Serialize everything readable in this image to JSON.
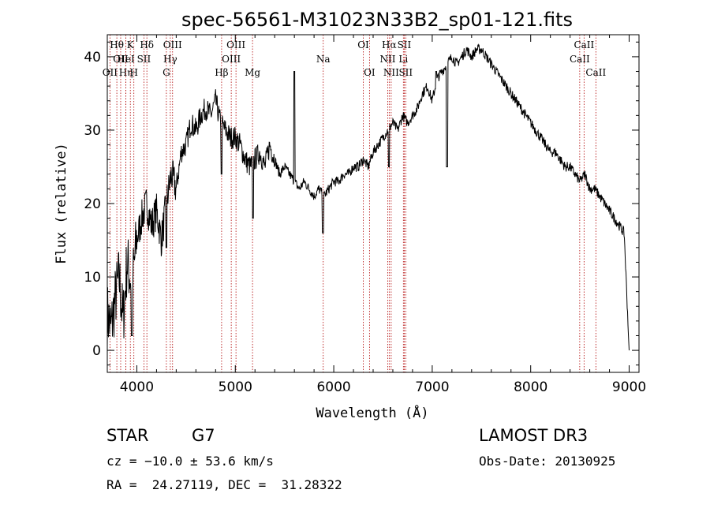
{
  "chart_data": {
    "type": "line",
    "title": "spec-56561-M31023N33B2_sp01-121.fits",
    "xlabel": "Wavelength (Å)",
    "ylabel": "Flux (relative)",
    "xlim": [
      3700,
      9100
    ],
    "ylim": [
      -3,
      43
    ],
    "xticks": [
      4000,
      5000,
      6000,
      7000,
      8000,
      9000
    ],
    "yticks": [
      0,
      10,
      20,
      30,
      40
    ],
    "grid": false,
    "series": [
      {
        "x": [
          3700,
          3740,
          3780,
          3820,
          3860,
          3900,
          3950,
          4000,
          4050,
          4100,
          4150,
          4200,
          4250,
          4300,
          4350,
          4400,
          4450,
          4500,
          4550,
          4600,
          4650,
          4700,
          4750,
          4800,
          4850,
          4900,
          4950,
          5000,
          5050,
          5100,
          5150,
          5200,
          5250,
          5300,
          5350,
          5400,
          5450,
          5500,
          5550,
          5600,
          5650,
          5700,
          5750,
          5800,
          5850,
          5900,
          5950,
          6000,
          6050,
          6100,
          6150,
          6200,
          6250,
          6300,
          6350,
          6400,
          6450,
          6500,
          6550,
          6600,
          6650,
          6700,
          6750,
          6800,
          6850,
          6900,
          6950,
          7000,
          7050,
          7100,
          7150,
          7200,
          7250,
          7300,
          7350,
          7400,
          7450,
          7500,
          7550,
          7600,
          7650,
          7700,
          7750,
          7800,
          7850,
          7900,
          7950,
          8000,
          8050,
          8100,
          8150,
          8200,
          8250,
          8300,
          8350,
          8400,
          8450,
          8500,
          8550,
          8600,
          8650,
          8700,
          8750,
          8800,
          8850,
          8900,
          8950,
          9000
        ],
        "values": [
          5,
          3,
          7,
          10,
          4,
          12,
          9,
          15,
          18,
          20,
          17,
          19,
          15,
          20,
          24,
          22,
          27,
          28,
          31,
          30,
          32,
          33,
          32,
          34,
          31,
          30,
          29,
          29,
          28,
          26,
          25,
          26,
          27,
          25,
          28,
          26,
          24,
          25,
          24,
          23,
          22,
          23,
          22,
          21,
          22,
          21,
          22,
          23,
          23,
          24,
          24,
          25,
          25,
          26,
          25,
          27,
          28,
          29,
          30,
          31,
          30,
          32,
          31,
          32,
          33,
          35,
          36,
          34,
          37,
          38,
          39,
          40,
          39,
          40,
          41,
          40,
          41,
          41,
          40,
          39,
          38,
          37,
          36,
          35,
          34,
          33,
          32,
          31,
          30,
          29,
          28,
          27,
          27,
          26,
          25,
          25,
          24,
          23,
          24,
          22,
          22,
          21,
          20,
          19,
          18,
          17,
          16,
          0
        ],
        "dips": [
          [
            3950,
            2
          ],
          [
            4300,
            14
          ],
          [
            4860,
            24
          ],
          [
            5180,
            18
          ],
          [
            5890,
            16
          ],
          [
            6560,
            25
          ],
          [
            7150,
            25
          ]
        ],
        "spikes": [
          [
            5600,
            38
          ],
          [
            7040,
            38
          ]
        ]
      }
    ],
    "line_markers": [
      {
        "wl": 3797,
        "label": "Hθ",
        "row": 0
      },
      {
        "wl": 3836,
        "label": "OII",
        "row": 1
      },
      {
        "wl": 3727,
        "label": "OII",
        "row": 2
      },
      {
        "wl": 3889,
        "label": "Hη",
        "row": 2
      },
      {
        "wl": 3934,
        "label": "K",
        "row": 0
      },
      {
        "wl": 3970,
        "label": "H",
        "row": 2
      },
      {
        "wl": 3889,
        "label": "HeI",
        "row": 1
      },
      {
        "wl": 4072,
        "label": "SII",
        "row": 1
      },
      {
        "wl": 4102,
        "label": "Hδ",
        "row": 0
      },
      {
        "wl": 4300,
        "label": "G",
        "row": 2
      },
      {
        "wl": 4340,
        "label": "Hγ",
        "row": 1
      },
      {
        "wl": 4363,
        "label": "OIII",
        "row": 0
      },
      {
        "wl": 4861,
        "label": "Hβ",
        "row": 2
      },
      {
        "wl": 4959,
        "label": "OIII",
        "row": 1
      },
      {
        "wl": 5007,
        "label": "OIII",
        "row": 0
      },
      {
        "wl": 5175,
        "label": "Mg",
        "row": 2
      },
      {
        "wl": 5893,
        "label": "Na",
        "row": 1
      },
      {
        "wl": 6300,
        "label": "OI",
        "row": 0
      },
      {
        "wl": 6363,
        "label": "OI",
        "row": 2
      },
      {
        "wl": 6548,
        "label": "NII",
        "row": 1
      },
      {
        "wl": 6563,
        "label": "Hα",
        "row": 0
      },
      {
        "wl": 6583,
        "label": "NII",
        "row": 2
      },
      {
        "wl": 6707,
        "label": "Li",
        "row": 1
      },
      {
        "wl": 6716,
        "label": "SII",
        "row": 0
      },
      {
        "wl": 6731,
        "label": "SII",
        "row": 2
      },
      {
        "wl": 8498,
        "label": "CaII",
        "row": 1
      },
      {
        "wl": 8542,
        "label": "CaII",
        "row": 0
      },
      {
        "wl": 8662,
        "label": "CaII",
        "row": 2
      }
    ]
  },
  "info": {
    "object_type": "STAR",
    "subclass": "G7",
    "survey": "LAMOST DR3",
    "cz": "cz = −10.0 ± 53.6 km/s",
    "obs_date": "Obs-Date: 20130925",
    "coords": "RA =  24.27119, DEC =  31.28322"
  }
}
